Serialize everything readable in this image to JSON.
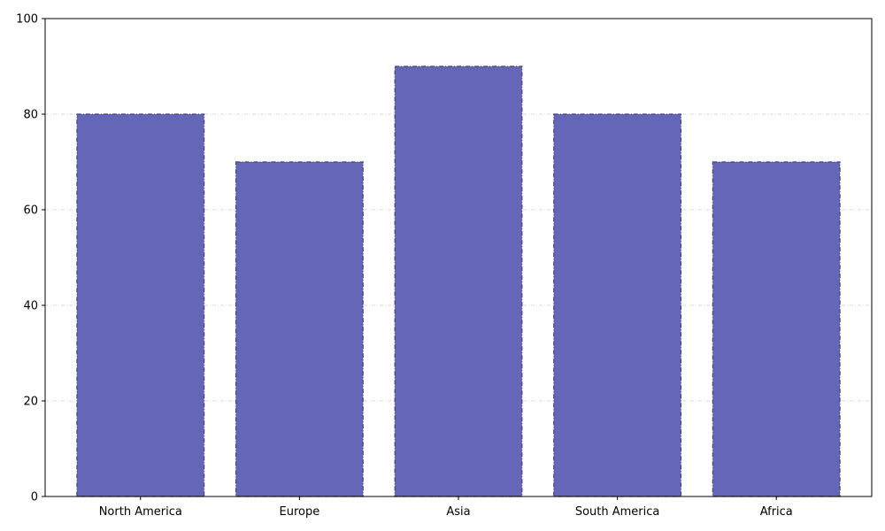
{
  "chart_data": {
    "type": "bar",
    "categories": [
      "North America",
      "Europe",
      "Asia",
      "South America",
      "Africa"
    ],
    "values": [
      80,
      70,
      90,
      80,
      70
    ],
    "title": "",
    "xlabel": "",
    "ylabel": "",
    "ylim": [
      0,
      100
    ],
    "yticks": [
      0,
      20,
      40,
      60,
      80,
      100
    ],
    "grid": "horizontal dashed",
    "bar_color": "#6666b8",
    "bar_edge_color": "#44447a"
  }
}
